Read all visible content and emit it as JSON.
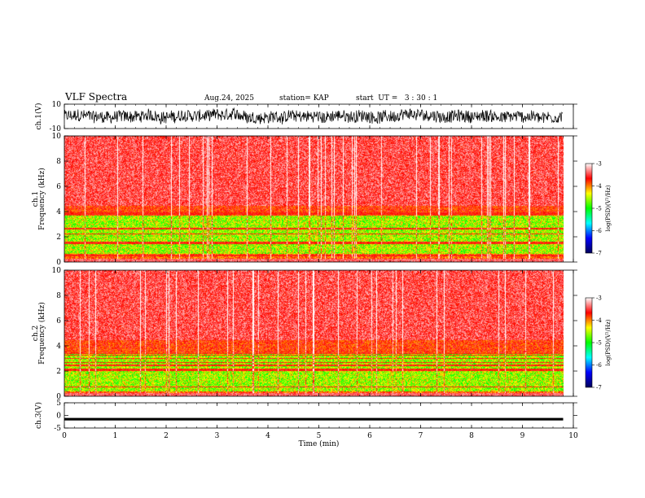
{
  "header": {
    "title": "VLF Spectra",
    "date": "Aug.24, 2025",
    "station": "station= KAP",
    "start": "start  UT =   3 : 30 : 1"
  },
  "chart_data": [
    {
      "type": "line",
      "name": "ch1-waveform",
      "ylabel": "ch.1(V)",
      "ylim": [
        -10,
        10
      ],
      "yticks": [
        10,
        -10
      ],
      "xlim": [
        0,
        10
      ],
      "data_extent_min": [
        0,
        9.8
      ],
      "description_values": {
        "mean": 0,
        "amplitude_approx": 5
      }
    },
    {
      "type": "heatmap",
      "name": "ch1-spectrogram",
      "ylabel": "ch.1\nFrequency (kHz)",
      "ylabel_lines": [
        "ch.1",
        "Frequency  (kHz)"
      ],
      "ylim": [
        0,
        10
      ],
      "yticks": [
        0,
        2,
        4,
        6,
        8,
        10
      ],
      "xlim": [
        0,
        10
      ],
      "data_extent_min": [
        0,
        9.8
      ],
      "green_band_khz": [
        0.7,
        3.4
      ],
      "colorbar": {
        "label": "log(PSD)(V²/Hz)",
        "range": [
          -7,
          -3
        ],
        "ticks": [
          -3,
          -4,
          -5,
          -6,
          -7
        ],
        "colors": [
          "#00005a",
          "#0000ff",
          "#00ffff",
          "#00ff00",
          "#ffff00",
          "#ff0000",
          "#ffffff"
        ]
      }
    },
    {
      "type": "heatmap",
      "name": "ch2-spectrogram",
      "ylabel": "ch.2\nFrequency (kHz)",
      "ylabel_lines": [
        "ch.2",
        "Frequency  (kHz)"
      ],
      "ylim": [
        0,
        10
      ],
      "yticks": [
        0,
        2,
        4,
        6,
        8,
        10
      ],
      "xlim": [
        0,
        10
      ],
      "data_extent_min": [
        0,
        9.8
      ],
      "green_band_khz": [
        0.4,
        3.1
      ],
      "colorbar": {
        "label": "log(PSD)(V²/Hz)",
        "range": [
          -7,
          -3
        ],
        "ticks": [
          -3,
          -4,
          -5,
          -6,
          -7
        ],
        "colors": [
          "#00005a",
          "#0000ff",
          "#00ffff",
          "#00ff00",
          "#ffff00",
          "#ff0000",
          "#ffffff"
        ]
      }
    },
    {
      "type": "line",
      "name": "ch3-waveform",
      "ylabel": "ch.3(V)",
      "ylim": [
        -5,
        5
      ],
      "yticks": [
        5,
        0,
        -5
      ],
      "xlim": [
        0,
        10
      ],
      "data_extent_min": [
        0,
        9.8
      ],
      "description_values": {
        "mean": -1.5,
        "amplitude_approx": 0.5
      }
    }
  ],
  "xaxis": {
    "label": "Time  (min)",
    "ticks": [
      0,
      1,
      2,
      3,
      4,
      5,
      6,
      7,
      8,
      9,
      10
    ]
  }
}
